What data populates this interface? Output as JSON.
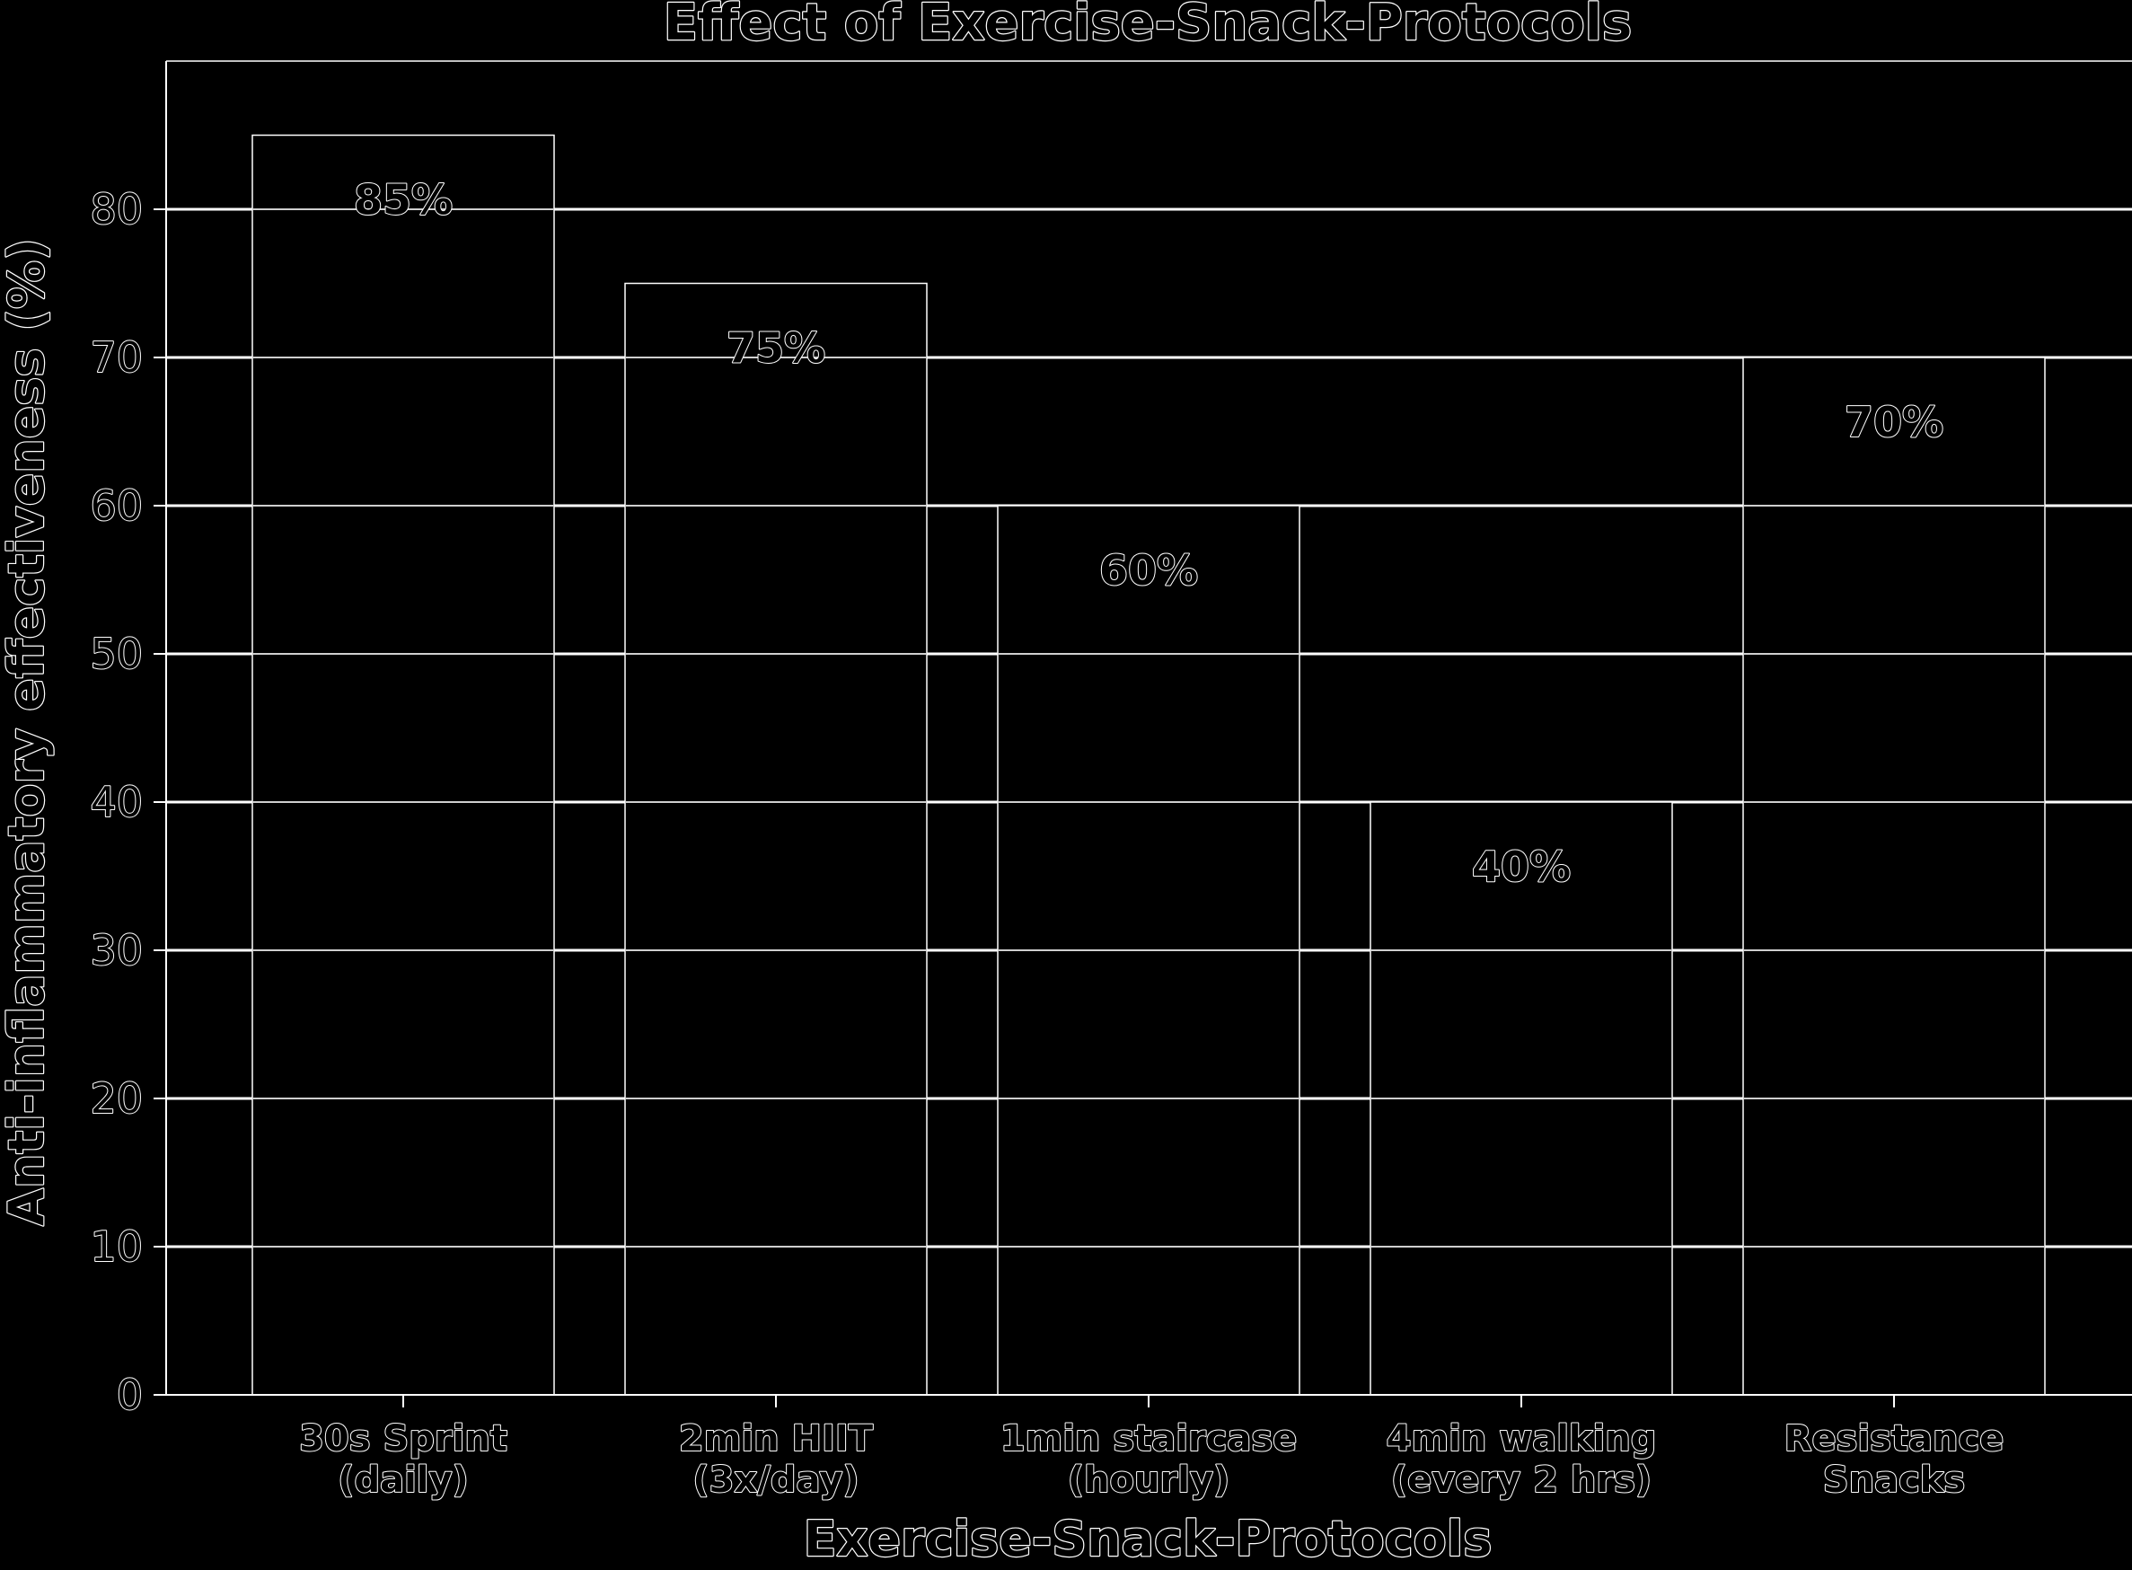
{
  "chart_data": {
    "type": "bar",
    "title": "Effect of Exercise-Snack-Protocols",
    "xlabel": "Exercise-Snack-Protocols",
    "ylabel": "Anti-inflammatory effectiveness (%)",
    "categories": [
      [
        "30s Sprint",
        "(daily)"
      ],
      [
        "2min HIIT",
        "(3x/day)"
      ],
      [
        "1min staircase",
        "(hourly)"
      ],
      [
        "4min walking",
        "(every 2 hrs)"
      ],
      [
        "Resistance",
        "Snacks"
      ]
    ],
    "values": [
      85,
      75,
      60,
      40,
      70
    ],
    "data_labels": [
      "85%",
      "75%",
      "60%",
      "40%",
      "70%"
    ],
    "ylim": [
      0,
      90
    ],
    "yticks": [
      0,
      10,
      20,
      30,
      40,
      50,
      60,
      70,
      80
    ],
    "ytick_labels": [
      "0",
      "10",
      "20",
      "30",
      "40",
      "50",
      "60",
      "70",
      "80"
    ],
    "grid": true,
    "colors": {
      "background": "#000000",
      "bar_fill": "#000000",
      "bar_edge": "#ffffff",
      "gridline": "#ffffff",
      "text_outline": "#ffffff"
    }
  }
}
